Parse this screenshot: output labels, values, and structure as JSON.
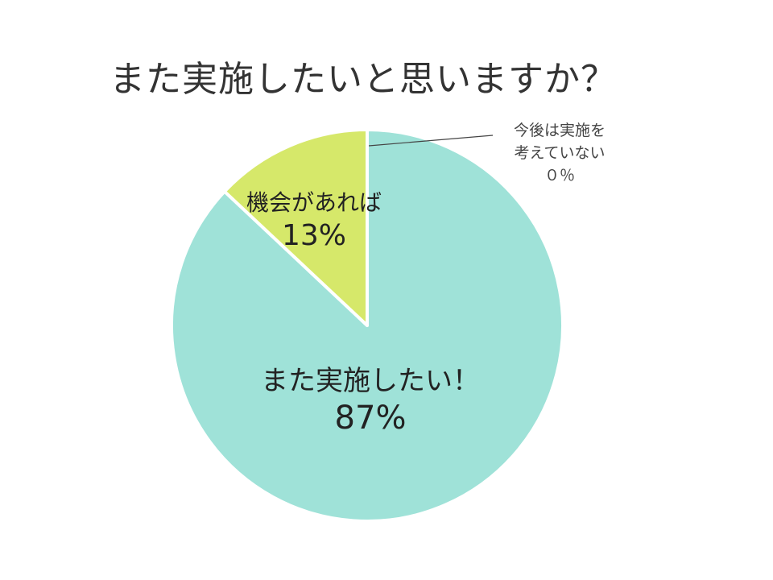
{
  "chart_data": {
    "type": "pie",
    "title": "また実施したいと思いますか？",
    "slices": [
      {
        "label": "また実施したい！",
        "value": 87,
        "value_label": "87%",
        "color": "#9fe2d8"
      },
      {
        "label": "機会があれば",
        "value": 13,
        "value_label": "13%",
        "color": "#d6e86a"
      },
      {
        "label": "今後は実施を考えていない",
        "label_lines": [
          "今後は実施を",
          "考えていない"
        ],
        "value": 0,
        "value_label": "０％",
        "color": "#cccccc"
      }
    ],
    "start": "12 o'clock",
    "direction": "clockwise"
  }
}
